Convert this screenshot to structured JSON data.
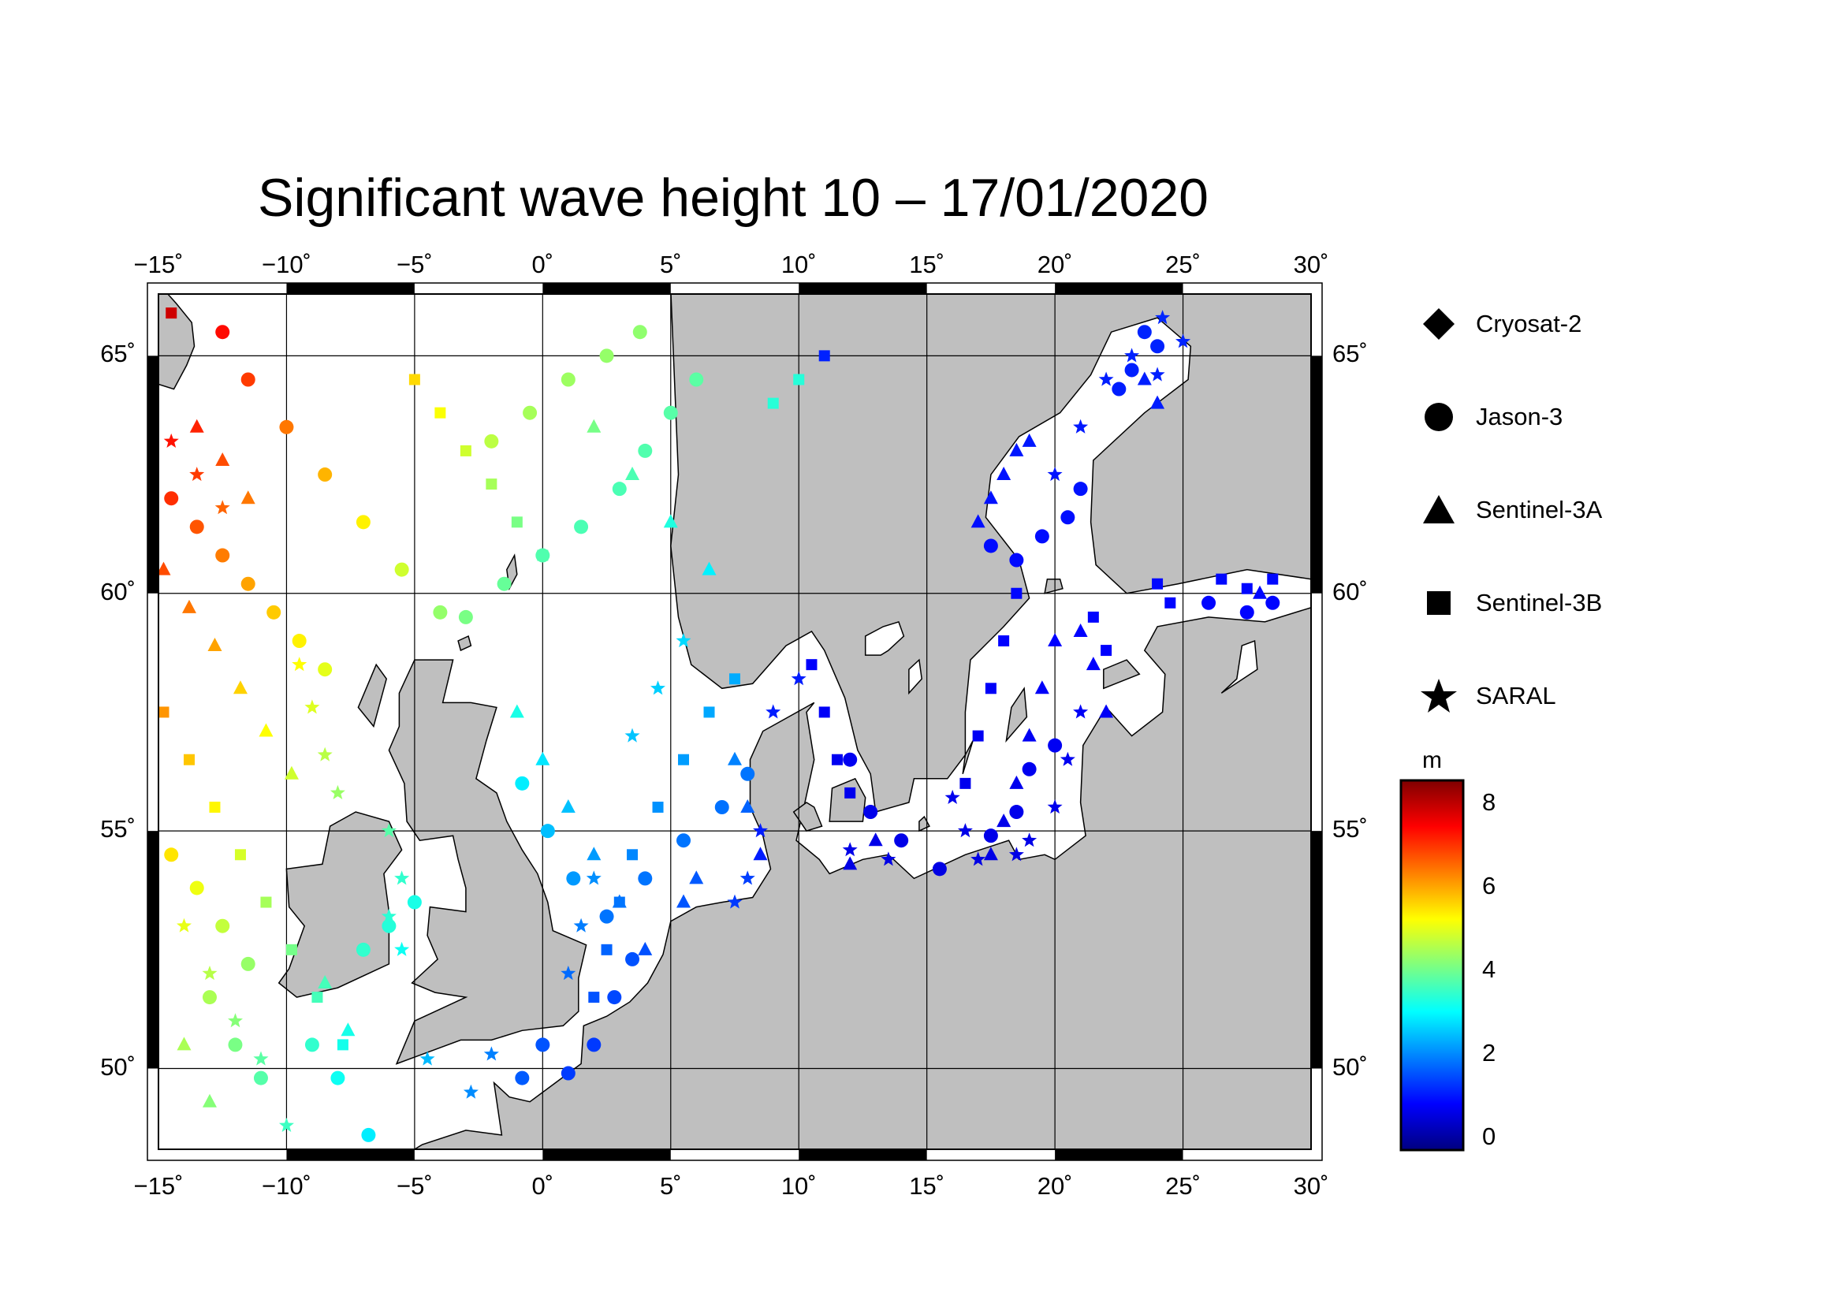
{
  "title": "Significant wave height 10 – 17/01/2020",
  "axes": {
    "lon_ticks": [
      "−15˚",
      "−10˚",
      "−5˚",
      "0˚",
      "5˚",
      "10˚",
      "15˚",
      "20˚",
      "25˚",
      "30˚"
    ],
    "lat_ticks": [
      "50˚",
      "55˚",
      "60˚",
      "65˚"
    ],
    "lon_range": [
      -15,
      30
    ],
    "lat_range": [
      48.3,
      66.3
    ]
  },
  "legend": {
    "items": [
      {
        "label": "Cryosat-2",
        "icon": "diamond-icon"
      },
      {
        "label": "Jason-3",
        "icon": "circle-icon"
      },
      {
        "label": "Sentinel-3A",
        "icon": "triangle-icon"
      },
      {
        "label": "Sentinel-3B",
        "icon": "square-icon"
      },
      {
        "label": "SARAL",
        "icon": "star-icon"
      }
    ]
  },
  "colorbar": {
    "unit": "m",
    "ticks": [
      "8",
      "6",
      "4",
      "2",
      "0"
    ],
    "range": [
      -0.6,
      8.6
    ],
    "colors": [
      "#00007f",
      "#0000ff",
      "#007fff",
      "#00ffff",
      "#7fff7f",
      "#ffff00",
      "#ff7f00",
      "#ff0000",
      "#7f0000"
    ]
  },
  "colors": {
    "land": "#bfbfbf",
    "sea": "#ffffff",
    "grid": "#000000"
  },
  "chart_data": {
    "type": "scatter",
    "x_axis": "longitude",
    "y_axis": "latitude",
    "series": [
      {
        "name": "Jason-3",
        "marker": "circle",
        "points": [
          [
            -14.5,
            62
          ],
          [
            -13.5,
            61.4
          ],
          [
            -12.5,
            60.8
          ],
          [
            -11.5,
            60.2
          ],
          [
            -10.5,
            59.6
          ],
          [
            -9.5,
            59
          ],
          [
            -8.5,
            58.4
          ],
          [
            -12.5,
            65.5
          ],
          [
            -11.5,
            64.5
          ],
          [
            -10,
            63.5
          ],
          [
            -8.5,
            62.5
          ],
          [
            -7,
            61.5
          ],
          [
            -5.5,
            60.5
          ],
          [
            -4,
            59.6
          ],
          [
            -14.5,
            54.5
          ],
          [
            -13.5,
            53.8
          ],
          [
            -12.5,
            53
          ],
          [
            -11.5,
            52.2
          ],
          [
            -13,
            51.5
          ],
          [
            -12,
            50.5
          ],
          [
            -11,
            49.8
          ],
          [
            -9,
            50.5
          ],
          [
            -8,
            49.8
          ],
          [
            -6.8,
            48.6
          ],
          [
            -7,
            52.5
          ],
          [
            -6,
            53
          ],
          [
            -5,
            53.5
          ],
          [
            0,
            50.5
          ],
          [
            -0.8,
            49.8
          ],
          [
            1,
            49.9
          ],
          [
            2,
            50.5
          ],
          [
            2.8,
            51.5
          ],
          [
            3.5,
            52.3
          ],
          [
            2.5,
            53.2
          ],
          [
            1.2,
            54
          ],
          [
            0.2,
            55
          ],
          [
            -0.8,
            56
          ],
          [
            4,
            54
          ],
          [
            5.5,
            54.8
          ],
          [
            7,
            55.5
          ],
          [
            8,
            56.2
          ],
          [
            3.8,
            65.5
          ],
          [
            2.5,
            65
          ],
          [
            1,
            64.5
          ],
          [
            -0.5,
            63.8
          ],
          [
            -2,
            63.2
          ],
          [
            6,
            64.5
          ],
          [
            5,
            63.8
          ],
          [
            4,
            63
          ],
          [
            3,
            62.2
          ],
          [
            1.5,
            61.4
          ],
          [
            0,
            60.8
          ],
          [
            -1.5,
            60.2
          ],
          [
            -3,
            59.5
          ],
          [
            12,
            56.5
          ],
          [
            12.8,
            55.4
          ],
          [
            14,
            54.8
          ],
          [
            15.5,
            54.2
          ],
          [
            17.5,
            54.9
          ],
          [
            18.5,
            55.4
          ],
          [
            19,
            56.3
          ],
          [
            20,
            56.8
          ],
          [
            17.5,
            61
          ],
          [
            18.5,
            60.7
          ],
          [
            19.5,
            61.2
          ],
          [
            20.5,
            61.6
          ],
          [
            21,
            62.2
          ],
          [
            23.5,
            65.5
          ],
          [
            24,
            65.2
          ],
          [
            23,
            64.7
          ],
          [
            22.5,
            64.3
          ],
          [
            26,
            59.8
          ],
          [
            27.5,
            59.6
          ],
          [
            28.5,
            59.8
          ]
        ]
      },
      {
        "name": "Sentinel-3A",
        "marker": "triangle",
        "points": [
          [
            -14.8,
            60.5
          ],
          [
            -13.8,
            59.7
          ],
          [
            -12.8,
            58.9
          ],
          [
            -11.8,
            58
          ],
          [
            -10.8,
            57.1
          ],
          [
            -9.8,
            56.2
          ],
          [
            -13.5,
            63.5
          ],
          [
            -12.5,
            62.8
          ],
          [
            -11.5,
            62
          ],
          [
            -14,
            50.5
          ],
          [
            -13,
            49.3
          ],
          [
            -8.5,
            51.8
          ],
          [
            -7.6,
            50.8
          ],
          [
            2,
            63.5
          ],
          [
            3.5,
            62.5
          ],
          [
            5,
            61.5
          ],
          [
            6.5,
            60.5
          ],
          [
            -1,
            57.5
          ],
          [
            0,
            56.5
          ],
          [
            1,
            55.5
          ],
          [
            2,
            54.5
          ],
          [
            3,
            53.5
          ],
          [
            4,
            52.5
          ],
          [
            7.5,
            56.5
          ],
          [
            8,
            55.5
          ],
          [
            8.5,
            54.5
          ],
          [
            6,
            54
          ],
          [
            5.5,
            53.5
          ],
          [
            12,
            54.3
          ],
          [
            13,
            54.8
          ],
          [
            17.5,
            54.5
          ],
          [
            18,
            55.2
          ],
          [
            18.5,
            56
          ],
          [
            19,
            57
          ],
          [
            19.5,
            58
          ],
          [
            20,
            59
          ],
          [
            17,
            61.5
          ],
          [
            17.5,
            62
          ],
          [
            18,
            62.5
          ],
          [
            18.5,
            63
          ],
          [
            19,
            63.2
          ],
          [
            21,
            59.2
          ],
          [
            21.5,
            58.5
          ],
          [
            22,
            57.5
          ],
          [
            23.5,
            64.5
          ],
          [
            24,
            64
          ],
          [
            28,
            60
          ]
        ]
      },
      {
        "name": "Sentinel-3B",
        "marker": "square",
        "points": [
          [
            -14.8,
            57.5
          ],
          [
            -13.8,
            56.5
          ],
          [
            -12.8,
            55.5
          ],
          [
            -11.8,
            54.5
          ],
          [
            -10.8,
            53.5
          ],
          [
            -9.8,
            52.5
          ],
          [
            -8.8,
            51.5
          ],
          [
            -7.8,
            50.5
          ],
          [
            -14.5,
            65.9
          ],
          [
            -5,
            64.5
          ],
          [
            -4,
            63.8
          ],
          [
            -3,
            63
          ],
          [
            -2,
            62.3
          ],
          [
            -1,
            61.5
          ],
          [
            0,
            60.8
          ],
          [
            9,
            64
          ],
          [
            10,
            64.5
          ],
          [
            11,
            65
          ],
          [
            2,
            51.5
          ],
          [
            2.5,
            52.5
          ],
          [
            3,
            53.5
          ],
          [
            3.5,
            54.5
          ],
          [
            4.5,
            55.5
          ],
          [
            5.5,
            56.5
          ],
          [
            6.5,
            57.5
          ],
          [
            7.5,
            58.2
          ],
          [
            10.5,
            58.5
          ],
          [
            11,
            57.5
          ],
          [
            11.5,
            56.5
          ],
          [
            12,
            55.8
          ],
          [
            16.5,
            56
          ],
          [
            17,
            57
          ],
          [
            17.5,
            58
          ],
          [
            18,
            59
          ],
          [
            18.5,
            60
          ],
          [
            21.5,
            59.5
          ],
          [
            22,
            58.8
          ],
          [
            24,
            60.2
          ],
          [
            24.5,
            59.8
          ],
          [
            26.5,
            60.3
          ],
          [
            27.5,
            60.1
          ],
          [
            28.5,
            60.3
          ]
        ]
      },
      {
        "name": "SARAL",
        "marker": "star",
        "points": [
          [
            -14.5,
            63.2
          ],
          [
            -13.5,
            62.5
          ],
          [
            -12.5,
            61.8
          ],
          [
            -14,
            53
          ],
          [
            -13,
            52
          ],
          [
            -12,
            51
          ],
          [
            -11,
            50.2
          ],
          [
            -10,
            48.8
          ],
          [
            -9.5,
            58.5
          ],
          [
            -9,
            57.6
          ],
          [
            -8.5,
            56.6
          ],
          [
            -8,
            55.8
          ],
          [
            -6,
            55
          ],
          [
            -5.5,
            54
          ],
          [
            -6,
            53.2
          ],
          [
            -5.5,
            52.5
          ],
          [
            -4.5,
            50.2
          ],
          [
            -2.8,
            49.5
          ],
          [
            -2,
            50.3
          ],
          [
            1,
            52
          ],
          [
            1.5,
            53
          ],
          [
            2,
            54
          ],
          [
            3.5,
            57
          ],
          [
            4.5,
            58
          ],
          [
            5.5,
            59
          ],
          [
            8.5,
            55
          ],
          [
            8,
            54
          ],
          [
            7.5,
            53.5
          ],
          [
            9,
            57.5
          ],
          [
            10,
            58.2
          ],
          [
            12,
            54.6
          ],
          [
            13.5,
            54.4
          ],
          [
            16,
            55.7
          ],
          [
            16.5,
            55
          ],
          [
            17,
            54.4
          ],
          [
            18.5,
            54.5
          ],
          [
            19,
            54.8
          ],
          [
            20,
            55.5
          ],
          [
            20.5,
            56.5
          ],
          [
            21,
            57.5
          ],
          [
            20,
            62.5
          ],
          [
            21,
            63.5
          ],
          [
            22,
            64.5
          ],
          [
            23,
            65
          ],
          [
            24,
            64.6
          ],
          [
            25,
            65.3
          ],
          [
            24.2,
            65.8
          ]
        ]
      }
    ]
  }
}
